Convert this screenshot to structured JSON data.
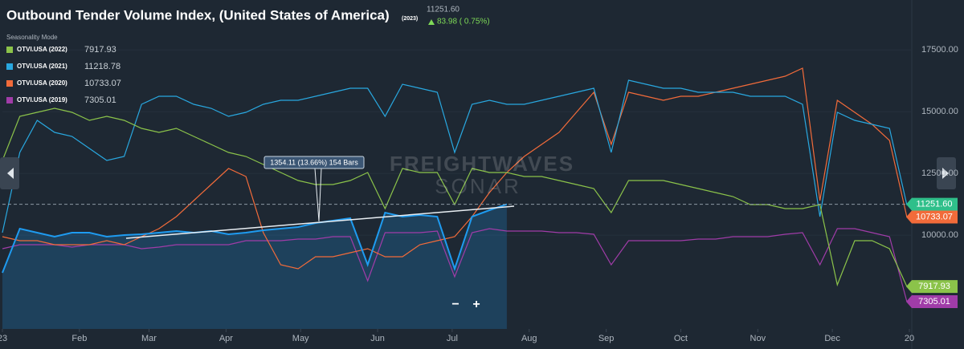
{
  "header": {
    "price": "11251.60",
    "change": "83.98 ( 0.75%)",
    "mode": "Seasonality Mode"
  },
  "watermark": [
    "FREIGHTWAVES",
    "SONAR"
  ],
  "annotation": "1354.11 (13.66%) 154 Bars",
  "controls": {
    "zoom_out": "−",
    "zoom_in": "+"
  },
  "chart_data": {
    "type": "line",
    "title": "Outbound Tender Volume Index, (United States of America)",
    "x": [
      0,
      7,
      14,
      21,
      28,
      35,
      42,
      49,
      56,
      63,
      70,
      77,
      84,
      91,
      98,
      105,
      112,
      119,
      126,
      133,
      140,
      147,
      154,
      161,
      168,
      175,
      182,
      189,
      196,
      203,
      210,
      217,
      224,
      231,
      238,
      245,
      252,
      259,
      266,
      273,
      280,
      287,
      294,
      301,
      308,
      315,
      322,
      329,
      336,
      343,
      350,
      357,
      364
    ],
    "xlim": [
      0,
      365
    ],
    "xticks": [
      {
        "value": 0,
        "label": "23"
      },
      {
        "value": 31,
        "label": "Feb"
      },
      {
        "value": 59,
        "label": "Mar"
      },
      {
        "value": 90,
        "label": "Apr"
      },
      {
        "value": 120,
        "label": "May"
      },
      {
        "value": 151,
        "label": "Jun"
      },
      {
        "value": 181,
        "label": "Jul"
      },
      {
        "value": 212,
        "label": "Aug"
      },
      {
        "value": 243,
        "label": "Sep"
      },
      {
        "value": 273,
        "label": "Oct"
      },
      {
        "value": 304,
        "label": "Nov"
      },
      {
        "value": 334,
        "label": "Dec"
      },
      {
        "value": 365,
        "label": "20"
      }
    ],
    "ylim": [
      6200,
      19200
    ],
    "yticks": [
      {
        "value": 10000,
        "label": "10000.00"
      },
      {
        "value": 12500,
        "label": "12500.00"
      },
      {
        "value": 15000,
        "label": "15000.00"
      },
      {
        "value": 17500,
        "label": "17500.00"
      }
    ],
    "series": [
      {
        "name": "(2023)",
        "color": "#1e9bf0",
        "area": true,
        "price_tag": true,
        "values": [
          8475,
          10262,
          10100,
          9937,
          10100,
          10100,
          9937,
          10002,
          10035,
          10100,
          10165,
          10100,
          10165,
          10035,
          10100,
          10197,
          10262,
          10327,
          10490,
          10587,
          10685,
          8800,
          10912,
          10750,
          10815,
          10750,
          8637,
          10750,
          11010,
          11251.6,
          null,
          null,
          null,
          null,
          null,
          null,
          null,
          null,
          null,
          null,
          null,
          null,
          null,
          null,
          null,
          null,
          null,
          null,
          null,
          null,
          null,
          null,
          null
        ]
      },
      {
        "name": "OTVI.USA (2022)",
        "color": "#8bc34a",
        "price_tag": true,
        "values": [
          13025,
          14812,
          14975,
          15137,
          14975,
          14650,
          14812,
          14650,
          14325,
          14162,
          14325,
          14000,
          13675,
          13350,
          13187,
          12862,
          12537,
          12212,
          12050,
          12050,
          12212,
          12537,
          11075,
          12700,
          12537,
          12537,
          11237,
          12700,
          12537,
          12537,
          12375,
          12375,
          12212,
          12050,
          11887,
          10912,
          12212,
          12212,
          12212,
          12050,
          11887,
          11725,
          11562,
          11237,
          11237,
          11075,
          11075,
          11237,
          7987,
          9775,
          9775,
          9450,
          7917.93
        ]
      },
      {
        "name": "OTVI.USA (2021)",
        "color": "#29a8e0",
        "price_tag": false,
        "values": [
          10100,
          13350,
          14650,
          14162,
          14000,
          13512,
          13025,
          13187,
          15300,
          15625,
          15625,
          15300,
          15137,
          14812,
          14975,
          15300,
          15462,
          15462,
          15625,
          15787,
          15950,
          15950,
          14812,
          16112,
          15950,
          15787,
          13350,
          15300,
          15462,
          15300,
          15300,
          15462,
          15625,
          15787,
          15950,
          13350,
          16275,
          16112,
          15950,
          15950,
          15787,
          15787,
          15787,
          15625,
          15625,
          15625,
          15300,
          10750,
          14975,
          14650,
          14487,
          14325,
          11218.78
        ]
      },
      {
        "name": "OTVI.USA (2020)",
        "color": "#f26b3a",
        "price_tag": true,
        "values": [
          9937,
          9775,
          9775,
          9612,
          9612,
          9612,
          9775,
          9612,
          9937,
          10262,
          10750,
          11400,
          12050,
          12700,
          12375,
          10100,
          8800,
          8637,
          9125,
          9125,
          9287,
          9450,
          9125,
          9125,
          9612,
          9775,
          9937,
          10750,
          11725,
          12537,
          13187,
          13675,
          14162,
          14975,
          15787,
          13675,
          15787,
          15625,
          15462,
          15625,
          15625,
          15787,
          15950,
          16112,
          16275,
          16437,
          16762,
          11400,
          15462,
          14975,
          14487,
          13837,
          10733.07
        ]
      },
      {
        "name": "OTVI.USA (2019)",
        "color": "#a03ca8",
        "price_tag": true,
        "values": [
          9450,
          9612,
          9612,
          9612,
          9515,
          9612,
          9612,
          9612,
          9450,
          9515,
          9612,
          9612,
          9612,
          9612,
          9775,
          9775,
          9775,
          9840,
          9840,
          9937,
          9937,
          8150,
          10100,
          10100,
          10100,
          10165,
          8312,
          10100,
          10262,
          10165,
          10165,
          10165,
          10100,
          10100,
          10035,
          8800,
          9775,
          9775,
          9775,
          9775,
          9840,
          9840,
          9937,
          9937,
          9937,
          10035,
          10100,
          8800,
          10262,
          10262,
          10100,
          9937,
          7305.01
        ]
      }
    ]
  }
}
